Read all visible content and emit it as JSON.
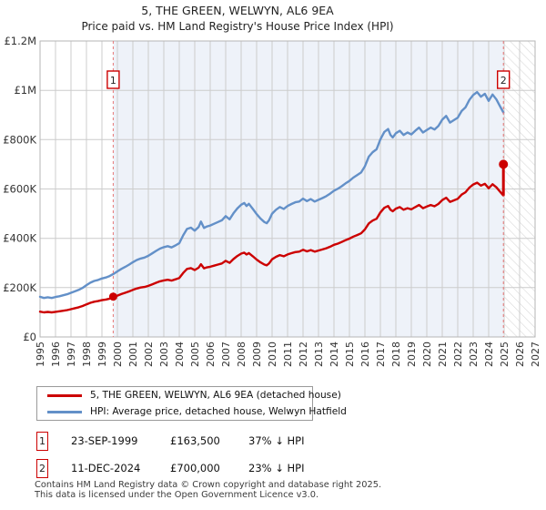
{
  "header": {
    "title": "5, THE GREEN, WELWYN, AL6 9EA",
    "subtitle": "Price paid vs. HM Land Registry's House Price Index (HPI)"
  },
  "chart_data": {
    "type": "line",
    "x_axis": {
      "start": 1995,
      "end": 2027,
      "tick_years": [
        1995,
        1996,
        1997,
        1998,
        1999,
        2000,
        2001,
        2002,
        2003,
        2004,
        2005,
        2006,
        2007,
        2008,
        2009,
        2010,
        2011,
        2012,
        2013,
        2014,
        2015,
        2016,
        2017,
        2018,
        2019,
        2020,
        2021,
        2022,
        2023,
        2024,
        2025,
        2026,
        2027
      ]
    },
    "y_axis": {
      "min": 0,
      "max": 1200000,
      "ticks": [
        {
          "value": 0,
          "label": "£0"
        },
        {
          "value": 200000,
          "label": "£200K"
        },
        {
          "value": 400000,
          "label": "£400K"
        },
        {
          "value": 600000,
          "label": "£600K"
        },
        {
          "value": 800000,
          "label": "£800K"
        },
        {
          "value": 1000000,
          "label": "£1M"
        },
        {
          "value": 1200000,
          "label": "£1.2M"
        }
      ]
    },
    "hpi_series": {
      "name": "HPI: Average price, detached house, Welwyn Hatfield",
      "color": "#6390c8",
      "points_year_gbp_k": [
        [
          1995.0,
          163
        ],
        [
          1995.25,
          158
        ],
        [
          1995.5,
          161
        ],
        [
          1995.75,
          158
        ],
        [
          1996.0,
          162
        ],
        [
          1996.25,
          165
        ],
        [
          1996.5,
          169
        ],
        [
          1996.75,
          173
        ],
        [
          1997.0,
          179
        ],
        [
          1997.25,
          185
        ],
        [
          1997.5,
          191
        ],
        [
          1997.75,
          199
        ],
        [
          1998.0,
          210
        ],
        [
          1998.25,
          220
        ],
        [
          1998.5,
          227
        ],
        [
          1998.75,
          231
        ],
        [
          1999.0,
          237
        ],
        [
          1999.25,
          241
        ],
        [
          1999.5,
          247
        ],
        [
          1999.75,
          256
        ],
        [
          2000.0,
          266
        ],
        [
          2000.25,
          276
        ],
        [
          2000.5,
          284
        ],
        [
          2000.75,
          293
        ],
        [
          2001.0,
          303
        ],
        [
          2001.25,
          312
        ],
        [
          2001.5,
          318
        ],
        [
          2001.75,
          322
        ],
        [
          2002.0,
          329
        ],
        [
          2002.25,
          339
        ],
        [
          2002.5,
          349
        ],
        [
          2002.75,
          358
        ],
        [
          2003.0,
          364
        ],
        [
          2003.25,
          368
        ],
        [
          2003.5,
          363
        ],
        [
          2003.75,
          371
        ],
        [
          2004.0,
          380
        ],
        [
          2004.25,
          412
        ],
        [
          2004.5,
          438
        ],
        [
          2004.75,
          443
        ],
        [
          2005.0,
          431
        ],
        [
          2005.25,
          446
        ],
        [
          2005.4,
          468
        ],
        [
          2005.6,
          442
        ],
        [
          2005.75,
          447
        ],
        [
          2006.0,
          452
        ],
        [
          2006.25,
          459
        ],
        [
          2006.5,
          466
        ],
        [
          2006.75,
          473
        ],
        [
          2007.0,
          490
        ],
        [
          2007.25,
          477
        ],
        [
          2007.5,
          501
        ],
        [
          2007.75,
          521
        ],
        [
          2008.0,
          536
        ],
        [
          2008.2,
          543
        ],
        [
          2008.35,
          531
        ],
        [
          2008.5,
          540
        ],
        [
          2008.75,
          519
        ],
        [
          2009.0,
          498
        ],
        [
          2009.25,
          480
        ],
        [
          2009.5,
          466
        ],
        [
          2009.65,
          461
        ],
        [
          2009.8,
          473
        ],
        [
          2010.0,
          500
        ],
        [
          2010.25,
          516
        ],
        [
          2010.5,
          527
        ],
        [
          2010.75,
          519
        ],
        [
          2011.0,
          531
        ],
        [
          2011.25,
          539
        ],
        [
          2011.5,
          546
        ],
        [
          2011.75,
          549
        ],
        [
          2012.0,
          561
        ],
        [
          2012.25,
          551
        ],
        [
          2012.5,
          559
        ],
        [
          2012.75,
          549
        ],
        [
          2013.0,
          556
        ],
        [
          2013.25,
          563
        ],
        [
          2013.5,
          571
        ],
        [
          2013.75,
          581
        ],
        [
          2014.0,
          593
        ],
        [
          2014.25,
          601
        ],
        [
          2014.5,
          611
        ],
        [
          2014.75,
          623
        ],
        [
          2015.0,
          633
        ],
        [
          2015.25,
          646
        ],
        [
          2015.5,
          656
        ],
        [
          2015.75,
          667
        ],
        [
          2016.0,
          692
        ],
        [
          2016.25,
          731
        ],
        [
          2016.5,
          749
        ],
        [
          2016.75,
          761
        ],
        [
          2017.0,
          801
        ],
        [
          2017.25,
          831
        ],
        [
          2017.5,
          843
        ],
        [
          2017.65,
          819
        ],
        [
          2017.8,
          809
        ],
        [
          2018.0,
          826
        ],
        [
          2018.25,
          836
        ],
        [
          2018.5,
          819
        ],
        [
          2018.75,
          829
        ],
        [
          2019.0,
          821
        ],
        [
          2019.25,
          836
        ],
        [
          2019.5,
          849
        ],
        [
          2019.75,
          829
        ],
        [
          2020.0,
          839
        ],
        [
          2020.25,
          849
        ],
        [
          2020.5,
          841
        ],
        [
          2020.75,
          856
        ],
        [
          2021.0,
          881
        ],
        [
          2021.25,
          896
        ],
        [
          2021.5,
          869
        ],
        [
          2021.75,
          879
        ],
        [
          2022.0,
          889
        ],
        [
          2022.25,
          916
        ],
        [
          2022.5,
          931
        ],
        [
          2022.75,
          961
        ],
        [
          2023.0,
          981
        ],
        [
          2023.25,
          993
        ],
        [
          2023.5,
          974
        ],
        [
          2023.75,
          986
        ],
        [
          2024.0,
          957
        ],
        [
          2024.25,
          983
        ],
        [
          2024.5,
          963
        ],
        [
          2024.75,
          933
        ],
        [
          2024.95,
          910
        ]
      ]
    },
    "price_series": {
      "name": "5, THE GREEN, WELWYN, AL6 9EA (detached house)",
      "color": "#cc0000",
      "scale_of_hpi": 0.63
    },
    "sales": [
      {
        "label": "1",
        "date": "23-SEP-1999",
        "year": 1999.73,
        "price_gbp": 163500,
        "price_label": "£163,500",
        "vs_hpi": "37% ↓ HPI"
      },
      {
        "label": "2",
        "date": "11-DEC-2024",
        "year": 2024.95,
        "price_gbp": 700000,
        "price_label": "£700,000",
        "vs_hpi": "23% ↓ HPI"
      }
    ],
    "colors": {
      "grid": "#cccccc",
      "border": "#b6b6b6",
      "shade_between_sales": "#eef2f9",
      "sale_dash_line": "#e87777",
      "hatch": "#d9d9d9",
      "axis_text": "#333333"
    },
    "layout_notes": {
      "shaded_region": "between sale 1 and sale 2",
      "hatched_region": "after sale 2 (no data yet)"
    }
  },
  "legend": {
    "items": [
      {
        "label": "5, THE GREEN, WELWYN, AL6 9EA (detached house)",
        "color": "#cc0000"
      },
      {
        "label": "HPI: Average price, detached house, Welwyn Hatfield",
        "color": "#6390c8"
      }
    ]
  },
  "footer": {
    "line1": "Contains HM Land Registry data © Crown copyright and database right 2025.",
    "line2": "This data is licensed under the Open Government Licence v3.0."
  }
}
